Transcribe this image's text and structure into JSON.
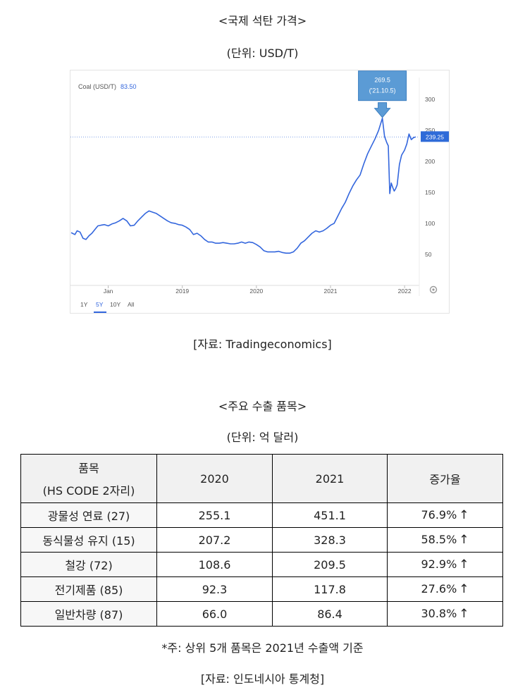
{
  "title1": "<국제 석탄 가격>",
  "unit1": "(단위: USD/T)",
  "chart_data": {
    "type": "line",
    "series_label": "Coal (USD/T)",
    "series_value_label": "83.50",
    "current_value_label": "239.25",
    "current_value": 239.25,
    "annotation": {
      "value_label": "269.5",
      "date_label": "('21.10.5)",
      "y": 269.5
    },
    "x_ticks": [
      "Jan",
      "2019",
      "2020",
      "2021",
      "2022"
    ],
    "y_ticks": [
      "300",
      "250",
      "200",
      "150",
      "100",
      "50"
    ],
    "ylim": [
      0,
      335
    ],
    "range_buttons": [
      "1Y",
      "5Y",
      "10Y",
      "All"
    ],
    "selected_range": "5Y",
    "x": [
      2017.5,
      2017.55,
      2017.58,
      2017.62,
      2017.66,
      2017.7,
      2017.74,
      2017.78,
      2017.82,
      2017.86,
      2017.9,
      2017.95,
      2018.0,
      2018.05,
      2018.1,
      2018.15,
      2018.2,
      2018.25,
      2018.3,
      2018.35,
      2018.4,
      2018.45,
      2018.5,
      2018.55,
      2018.6,
      2018.65,
      2018.7,
      2018.75,
      2018.8,
      2018.85,
      2018.9,
      2018.95,
      2019.0,
      2019.05,
      2019.1,
      2019.15,
      2019.2,
      2019.25,
      2019.3,
      2019.35,
      2019.4,
      2019.45,
      2019.5,
      2019.55,
      2019.6,
      2019.65,
      2019.7,
      2019.75,
      2019.8,
      2019.85,
      2019.9,
      2019.95,
      2020.0,
      2020.05,
      2020.1,
      2020.15,
      2020.2,
      2020.25,
      2020.3,
      2020.35,
      2020.4,
      2020.45,
      2020.5,
      2020.55,
      2020.6,
      2020.65,
      2020.7,
      2020.75,
      2020.8,
      2020.85,
      2020.9,
      2020.95,
      2021.0,
      2021.05,
      2021.1,
      2021.15,
      2021.2,
      2021.25,
      2021.3,
      2021.35,
      2021.4,
      2021.45,
      2021.5,
      2021.55,
      2021.6,
      2021.65,
      2021.7,
      2021.73,
      2021.76,
      2021.78,
      2021.8,
      2021.82,
      2021.84,
      2021.86,
      2021.88,
      2021.9,
      2021.93,
      2021.96,
      2022.0,
      2022.03,
      2022.06,
      2022.09,
      2022.12,
      2022.15
    ],
    "y": [
      85,
      82,
      88,
      86,
      76,
      74,
      80,
      84,
      90,
      96,
      97,
      98,
      96,
      99,
      101,
      104,
      108,
      104,
      96,
      97,
      104,
      110,
      116,
      120,
      118,
      116,
      112,
      108,
      104,
      101,
      100,
      98,
      97,
      94,
      90,
      82,
      84,
      80,
      74,
      70,
      70,
      68,
      68,
      69,
      68,
      67,
      67,
      68,
      70,
      68,
      70,
      69,
      66,
      62,
      56,
      54,
      54,
      54,
      55,
      53,
      52,
      52,
      54,
      60,
      68,
      72,
      78,
      84,
      88,
      86,
      88,
      92,
      97,
      100,
      112,
      124,
      134,
      148,
      160,
      170,
      178,
      196,
      212,
      224,
      236,
      250,
      269.5,
      240,
      230,
      225,
      148,
      165,
      158,
      152,
      156,
      162,
      195,
      210,
      218,
      228,
      244,
      235,
      238,
      239.25
    ]
  },
  "source1": "[자료: Tradingeconomics]",
  "title2": "<주요 수출 품목>",
  "unit2": "(단위: 억 달러)",
  "table": {
    "headers": {
      "item_line1": "품목",
      "item_line2": "(HS CODE 2자리)",
      "col2020": "2020",
      "col2021": "2021",
      "growth": "증가율"
    },
    "arrow": "↑",
    "rows": [
      {
        "item": "광물성 연료 (27)",
        "v2020": "255.1",
        "v2021": "451.1",
        "growth": "76.9%"
      },
      {
        "item": "동식물성 유지 (15)",
        "v2020": "207.2",
        "v2021": "328.3",
        "growth": "58.5%"
      },
      {
        "item": "철강 (72)",
        "v2020": "108.6",
        "v2021": "209.5",
        "growth": "92.9%"
      },
      {
        "item": "전기제품 (85)",
        "v2020": "92.3",
        "v2021": "117.8",
        "growth": "27.6%"
      },
      {
        "item": "일반차량 (87)",
        "v2020": "66.0",
        "v2021": "86.4",
        "growth": "30.8%"
      }
    ]
  },
  "note": "*주: 상위 5개 품목은 2021년 수출액 기준",
  "source2": "[자료: 인도네시아 통계청]",
  "colors": {
    "line": "#3366dd",
    "annotation": "#5b9bd5",
    "price_tag": "#2f6bd8"
  }
}
